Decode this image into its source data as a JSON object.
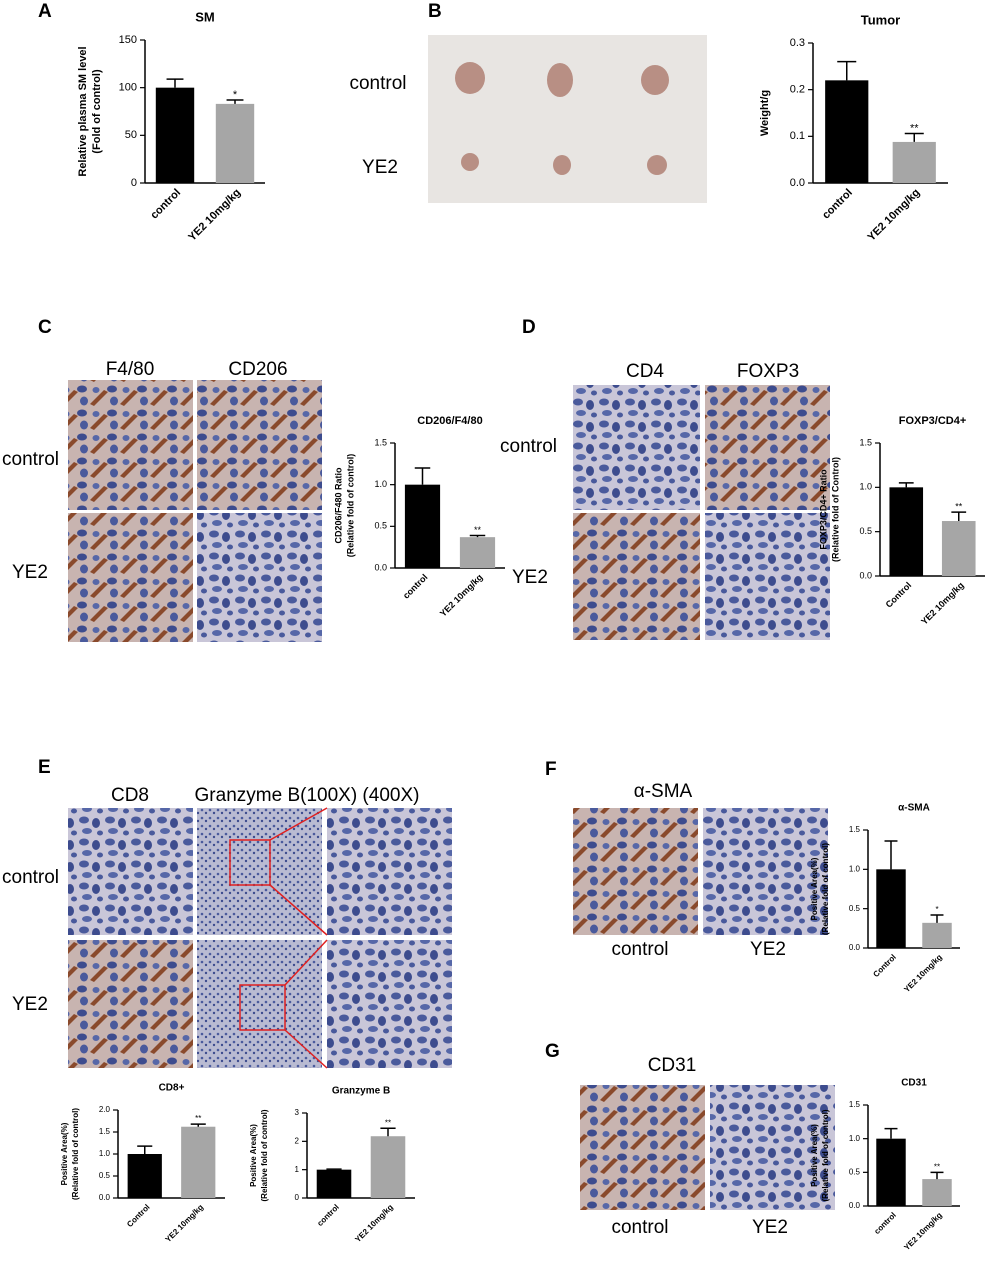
{
  "panel_labels": [
    "A",
    "B",
    "C",
    "D",
    "E",
    "F",
    "G"
  ],
  "images": {
    "B": {
      "rows": [
        "control",
        "YE2"
      ]
    },
    "C": {
      "columns": [
        "F4/80",
        "CD206"
      ],
      "rows": [
        "control",
        "YE2"
      ]
    },
    "D": {
      "columns": [
        "CD4",
        "FOXP3"
      ],
      "rows": [
        "control",
        "YE2"
      ]
    },
    "E": {
      "columns": [
        "CD8",
        "Granzyme B(100X) (400X)"
      ],
      "rows": [
        "control",
        "YE2"
      ]
    },
    "F": {
      "columns": [
        "α-SMA"
      ],
      "captions": [
        "control",
        "YE2"
      ]
    },
    "G": {
      "columns": [
        "CD31"
      ],
      "captions": [
        "control",
        "YE2"
      ]
    }
  },
  "chart_data": [
    {
      "type": "bar",
      "title": "SM",
      "y_label": [
        "Relative plasma SM level",
        "(Fold of control)"
      ],
      "categories": [
        "control",
        "YE2 10mg/kg"
      ],
      "values": [
        100,
        83
      ],
      "errors": [
        9,
        4
      ],
      "significance": [
        null,
        "*"
      ],
      "colors": [
        "#000000",
        "#a6a6a6"
      ],
      "ylim": [
        0,
        150
      ],
      "yticks": [
        0,
        50,
        100,
        150
      ]
    },
    {
      "type": "bar",
      "title": "Tumor",
      "y_label": [
        "Weight/g"
      ],
      "categories": [
        "control",
        "YE2 10mg/kg"
      ],
      "values": [
        0.22,
        0.088
      ],
      "errors": [
        0.04,
        0.018
      ],
      "significance": [
        null,
        "**"
      ],
      "colors": [
        "#000000",
        "#a6a6a6"
      ],
      "ylim": [
        0,
        0.3
      ],
      "yticks": [
        {
          "value": 0,
          "label": "0.0"
        },
        0.1,
        0.2,
        0.3
      ]
    },
    {
      "type": "bar",
      "title": "CD206/F4/80",
      "y_label": [
        "CD206/F480 Ratio",
        "(Relative fold of control)"
      ],
      "categories": [
        "control",
        "YE2 10mg/kg"
      ],
      "values": [
        1.0,
        0.37
      ],
      "errors": [
        0.2,
        0.02
      ],
      "significance": [
        null,
        "**"
      ],
      "colors": [
        "#000000",
        "#a6a6a6"
      ],
      "ylim": [
        0,
        1.5
      ],
      "yticks": [
        {
          "value": 0,
          "label": "0.0"
        },
        0.5,
        {
          "value": 1,
          "label": "1.0"
        },
        1.5
      ]
    },
    {
      "type": "bar",
      "title": "FOXP3/CD4+",
      "y_label": [
        "FOXP3/CD4+ Ratio",
        "(Relative fold of Control)"
      ],
      "categories": [
        "Control",
        "YE2 10mg/kg"
      ],
      "values": [
        1.0,
        0.62
      ],
      "errors": [
        0.05,
        0.1
      ],
      "significance": [
        null,
        "**"
      ],
      "colors": [
        "#000000",
        "#a6a6a6"
      ],
      "ylim": [
        0,
        1.5
      ],
      "yticks": [
        {
          "value": 0,
          "label": "0.0"
        },
        0.5,
        {
          "value": 1,
          "label": "1.0"
        },
        1.5
      ]
    },
    {
      "type": "bar",
      "title": "CD8+",
      "y_label": [
        "Positive Area(%)",
        "(Relative fold of control)"
      ],
      "categories": [
        "Control",
        "YE2 10mg/kg"
      ],
      "values": [
        1.0,
        1.62
      ],
      "errors": [
        0.18,
        0.06
      ],
      "significance": [
        null,
        "**"
      ],
      "colors": [
        "#000000",
        "#a6a6a6"
      ],
      "ylim": [
        0,
        2
      ],
      "yticks": [
        {
          "value": 0,
          "label": "0.0"
        },
        0.5,
        {
          "value": 1,
          "label": "1.0"
        },
        1.5,
        {
          "value": 2,
          "label": "2.0"
        }
      ]
    },
    {
      "type": "bar",
      "title": "Granzyme B",
      "y_label": [
        "Positive Area(%)",
        "(Relative fold of control)"
      ],
      "categories": [
        "control",
        "YE2 10mg/kg"
      ],
      "values": [
        1.0,
        2.18
      ],
      "errors": [
        0.02,
        0.28
      ],
      "significance": [
        null,
        "**"
      ],
      "colors": [
        "#000000",
        "#a6a6a6"
      ],
      "ylim": [
        0,
        3
      ],
      "yticks": [
        0,
        1,
        2,
        3
      ]
    },
    {
      "type": "bar",
      "title": "α-SMA",
      "y_label": [
        "Positive Area(%)",
        "(Relative fold of control)"
      ],
      "categories": [
        "Control",
        "YE2 10mg/kg"
      ],
      "values": [
        1.0,
        0.32
      ],
      "errors": [
        0.36,
        0.1
      ],
      "significance": [
        null,
        "*"
      ],
      "colors": [
        "#000000",
        "#a6a6a6"
      ],
      "ylim": [
        0,
        1.5
      ],
      "yticks": [
        {
          "value": 0,
          "label": "0.0"
        },
        0.5,
        {
          "value": 1,
          "label": "1.0"
        },
        1.5
      ]
    },
    {
      "type": "bar",
      "title": "CD31",
      "y_label": [
        "Positive Area(%)",
        "(Relative fold of control)"
      ],
      "categories": [
        "control",
        "YE2 10mg/kg"
      ],
      "values": [
        1.0,
        0.4
      ],
      "errors": [
        0.15,
        0.1
      ],
      "significance": [
        null,
        "**"
      ],
      "colors": [
        "#000000",
        "#a6a6a6"
      ],
      "ylim": [
        0,
        1.5
      ],
      "yticks": [
        {
          "value": 0,
          "label": "0.0"
        },
        0.5,
        {
          "value": 1,
          "label": "1.0"
        },
        1.5
      ]
    }
  ]
}
